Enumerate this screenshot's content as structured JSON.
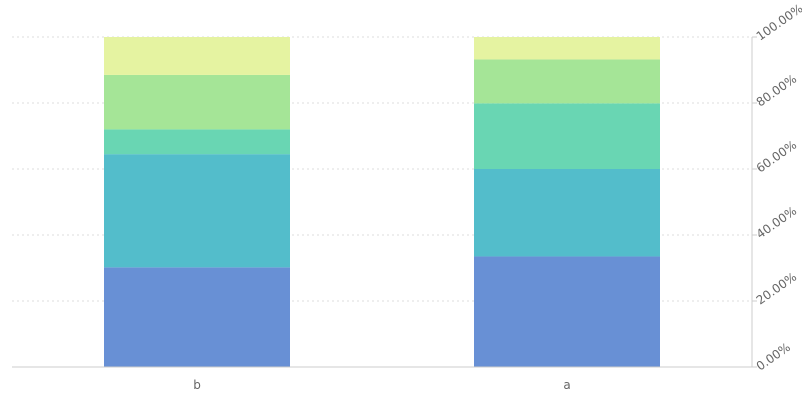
{
  "chart_data": {
    "type": "bar",
    "stacked": "percent",
    "categories": [
      "b",
      "a"
    ],
    "series": [
      {
        "values": [
          30.2,
          33.5
        ],
        "color": "#6890d5"
      },
      {
        "values": [
          34.3,
          26.5
        ],
        "color": "#53bdcb"
      },
      {
        "values": [
          7.5,
          19.9
        ],
        "color": "#69d6b3"
      },
      {
        "values": [
          16.5,
          13.3
        ],
        "color": "#a5e597"
      },
      {
        "values": [
          11.5,
          6.8
        ],
        "color": "#e5f3a1"
      }
    ],
    "y_ticks": [
      "0.00%",
      "20.00%",
      "40.00%",
      "60.00%",
      "80.00%",
      "100.00%"
    ],
    "ylim": [
      0,
      100
    ],
    "y_axis_position": "right",
    "grid": true,
    "grid_color": "#dcdcdc",
    "axis_color": "#cccccc",
    "title": "",
    "xlabel": "",
    "ylabel": ""
  }
}
